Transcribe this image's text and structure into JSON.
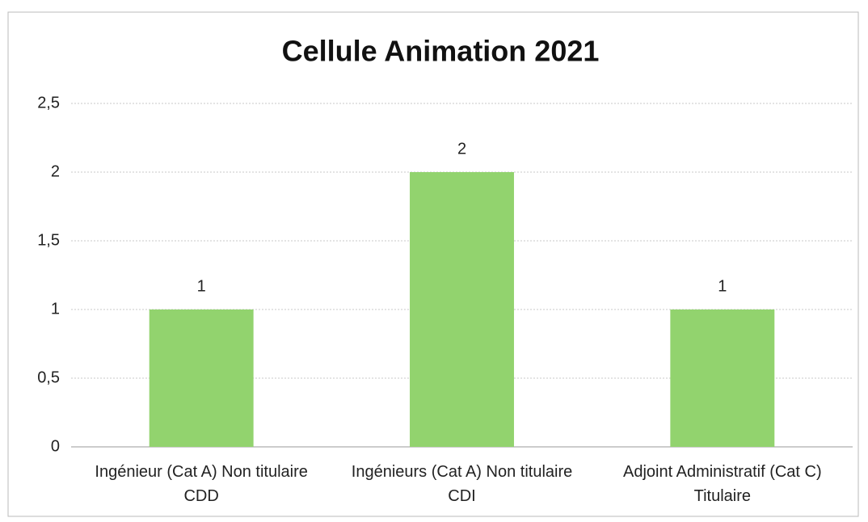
{
  "chart_data": {
    "type": "bar",
    "title": "Cellule Animation 2021",
    "categories": [
      "Ingénieur (Cat A) Non titulaire CDD",
      "Ingénieurs (Cat A) Non titulaire CDI",
      "Adjoint Administratif (Cat C) Titulaire"
    ],
    "values": [
      1,
      2,
      1
    ],
    "color": "#92d36e",
    "ylim": [
      0,
      2.5
    ],
    "yticks": [
      0,
      {
        "value": 0.5,
        "label": "0,5"
      },
      1,
      {
        "value": 1.5,
        "label": "1,5"
      },
      2,
      {
        "value": 2.5,
        "label": "2,5"
      }
    ],
    "grid": true
  }
}
